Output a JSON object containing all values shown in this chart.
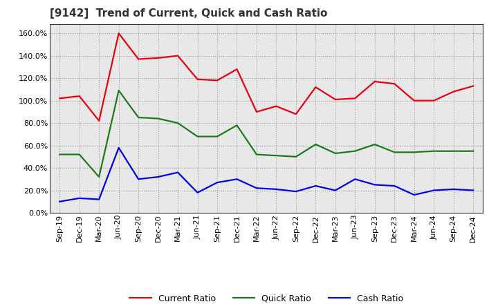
{
  "title": "[9142]  Trend of Current, Quick and Cash Ratio",
  "labels": [
    "Sep-19",
    "Dec-19",
    "Mar-20",
    "Jun-20",
    "Sep-20",
    "Dec-20",
    "Mar-21",
    "Jun-21",
    "Sep-21",
    "Dec-21",
    "Mar-22",
    "Jun-22",
    "Sep-22",
    "Dec-22",
    "Mar-23",
    "Jun-23",
    "Sep-23",
    "Dec-23",
    "Mar-24",
    "Jun-24",
    "Sep-24",
    "Dec-24"
  ],
  "current_ratio": [
    102.0,
    104.0,
    82.0,
    160.0,
    137.0,
    138.0,
    140.0,
    119.0,
    118.0,
    128.0,
    90.0,
    95.0,
    88.0,
    112.0,
    101.0,
    102.0,
    117.0,
    115.0,
    100.0,
    100.0,
    108.0,
    113.0
  ],
  "quick_ratio": [
    52.0,
    52.0,
    32.0,
    109.0,
    85.0,
    84.0,
    80.0,
    68.0,
    68.0,
    78.0,
    52.0,
    51.0,
    50.0,
    61.0,
    53.0,
    55.0,
    61.0,
    54.0,
    54.0,
    55.0,
    55.0,
    55.0
  ],
  "cash_ratio": [
    10.0,
    13.0,
    12.0,
    58.0,
    30.0,
    32.0,
    36.0,
    18.0,
    27.0,
    30.0,
    22.0,
    21.0,
    19.0,
    24.0,
    20.0,
    30.0,
    25.0,
    24.0,
    16.0,
    20.0,
    21.0,
    20.0
  ],
  "current_color": "#e8000e",
  "quick_color": "#1a7a1a",
  "cash_color": "#0000e8",
  "ylim": [
    0.0,
    168.0
  ],
  "yticks": [
    0.0,
    20.0,
    40.0,
    60.0,
    80.0,
    100.0,
    120.0,
    140.0,
    160.0
  ],
  "bg_color": "#ffffff",
  "plot_bg_color": "#e8e8e8",
  "grid_color": "#888888",
  "line_width": 1.6,
  "tick_fontsize": 8,
  "title_fontsize": 11
}
